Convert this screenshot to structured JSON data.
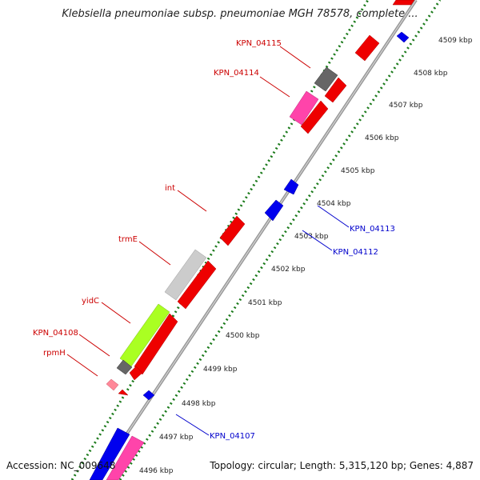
{
  "title": "Klebsiella pneumoniae subsp. pneumoniae MGH 78578, complete ...",
  "footer": {
    "accession": "Accession: NC_009648",
    "topology": "Topology: circular; Length: 5,315,120 bp; Genes: 4,887"
  },
  "colors": {
    "backbone": "#999999",
    "tick_dots": "#1a7a1a",
    "forward_gene": "#ee0000",
    "reverse_gene": "#0000ee",
    "forward_label": "#cc0000",
    "reverse_label": "#0000cc",
    "dark_gray": "#666666",
    "light_gray": "#cccccc",
    "pink": "#ff44aa",
    "lime": "#aaff22"
  },
  "kbp_scale": [
    "4496 kbp",
    "4497 kbp",
    "4498 kbp",
    "4499 kbp",
    "4500 kbp",
    "4501 kbp",
    "4502 kbp",
    "4503 kbp",
    "4504 kbp",
    "4505 kbp",
    "4506 kbp",
    "4507 kbp",
    "4508 kbp",
    "4509 kbp"
  ],
  "forward_labels": [
    "KPN_04115",
    "KPN_04114",
    "int",
    "trmE",
    "yidC",
    "KPN_04108",
    "rpmH"
  ],
  "reverse_labels": [
    "KPN_04113",
    "KPN_04112",
    "KPN_04107"
  ]
}
